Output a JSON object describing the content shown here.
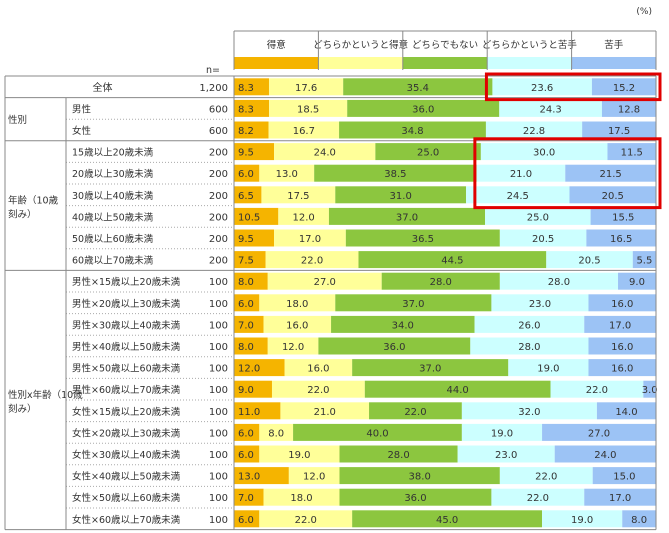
{
  "chart_data": {
    "type": "bar",
    "orientation": "horizontal",
    "stacked": "100%",
    "unit_label": "(%)",
    "n_header": "n=",
    "legend": [
      {
        "name": "得意",
        "color": "#F5B400"
      },
      {
        "name": "どちらかというと得意",
        "color": "#FFFF99"
      },
      {
        "name": "どちらでもない",
        "color": "#8CC63F"
      },
      {
        "name": "どちらかというと苦手",
        "color": "#CCFFFF"
      },
      {
        "name": "苦手",
        "color": "#9CC3F5"
      }
    ],
    "groups": [
      {
        "label": "",
        "rows": [
          {
            "label": "全体",
            "n": "1,200",
            "values": [
              8.3,
              17.6,
              35.4,
              23.6,
              15.2
            ],
            "highlight": [
              3,
              4
            ]
          }
        ]
      },
      {
        "label": "性別",
        "rows": [
          {
            "label": "男性",
            "n": "600",
            "values": [
              8.3,
              18.5,
              36.0,
              24.3,
              12.8
            ]
          },
          {
            "label": "女性",
            "n": "600",
            "values": [
              8.2,
              16.7,
              34.8,
              22.8,
              17.5
            ]
          }
        ]
      },
      {
        "label": "年齢（10歳刻み）",
        "rows": [
          {
            "label": "15歳以上20歳未満",
            "n": "200",
            "values": [
              9.5,
              24.0,
              25.0,
              30.0,
              11.5
            ],
            "highlight": [
              3,
              4
            ]
          },
          {
            "label": "20歳以上30歳未満",
            "n": "200",
            "values": [
              6.0,
              13.0,
              38.5,
              21.0,
              21.5
            ],
            "highlight": [
              3,
              4
            ]
          },
          {
            "label": "30歳以上40歳未満",
            "n": "200",
            "values": [
              6.5,
              17.5,
              31.0,
              24.5,
              20.5
            ],
            "highlight": [
              3,
              4
            ]
          },
          {
            "label": "40歳以上50歳未満",
            "n": "200",
            "values": [
              10.5,
              12.0,
              37.0,
              25.0,
              15.5
            ]
          },
          {
            "label": "50歳以上60歳未満",
            "n": "200",
            "values": [
              9.5,
              17.0,
              36.5,
              20.5,
              16.5
            ]
          },
          {
            "label": "60歳以上70歳未満",
            "n": "200",
            "values": [
              7.5,
              22.0,
              44.5,
              20.5,
              5.5
            ]
          }
        ]
      },
      {
        "label": "性別x年齢（10歳刻み）",
        "rows": [
          {
            "label": "男性×15歳以上20歳未満",
            "n": "100",
            "values": [
              8.0,
              27.0,
              28.0,
              28.0,
              9.0
            ]
          },
          {
            "label": "男性×20歳以上30歳未満",
            "n": "100",
            "values": [
              6.0,
              18.0,
              37.0,
              23.0,
              16.0
            ]
          },
          {
            "label": "男性×30歳以上40歳未満",
            "n": "100",
            "values": [
              7.0,
              16.0,
              34.0,
              26.0,
              17.0
            ]
          },
          {
            "label": "男性×40歳以上50歳未満",
            "n": "100",
            "values": [
              8.0,
              12.0,
              36.0,
              28.0,
              16.0
            ]
          },
          {
            "label": "男性×50歳以上60歳未満",
            "n": "100",
            "values": [
              12.0,
              16.0,
              37.0,
              19.0,
              16.0
            ]
          },
          {
            "label": "男性×60歳以上70歳未満",
            "n": "100",
            "values": [
              9.0,
              22.0,
              44.0,
              22.0,
              3.0
            ]
          },
          {
            "label": "女性×15歳以上20歳未満",
            "n": "100",
            "values": [
              11.0,
              21.0,
              22.0,
              32.0,
              14.0
            ]
          },
          {
            "label": "女性×20歳以上30歳未満",
            "n": "100",
            "values": [
              6.0,
              8.0,
              40.0,
              19.0,
              27.0
            ]
          },
          {
            "label": "女性×30歳以上40歳未満",
            "n": "100",
            "values": [
              6.0,
              19.0,
              28.0,
              23.0,
              24.0
            ]
          },
          {
            "label": "女性×40歳以上50歳未満",
            "n": "100",
            "values": [
              13.0,
              12.0,
              38.0,
              22.0,
              15.0
            ]
          },
          {
            "label": "女性×50歳以上60歳未満",
            "n": "100",
            "values": [
              7.0,
              18.0,
              36.0,
              22.0,
              17.0
            ]
          },
          {
            "label": "女性×60歳以上70歳未満",
            "n": "100",
            "values": [
              6.0,
              22.0,
              45.0,
              19.0,
              8.0
            ]
          }
        ]
      }
    ],
    "xlim": [
      0,
      100
    ]
  }
}
